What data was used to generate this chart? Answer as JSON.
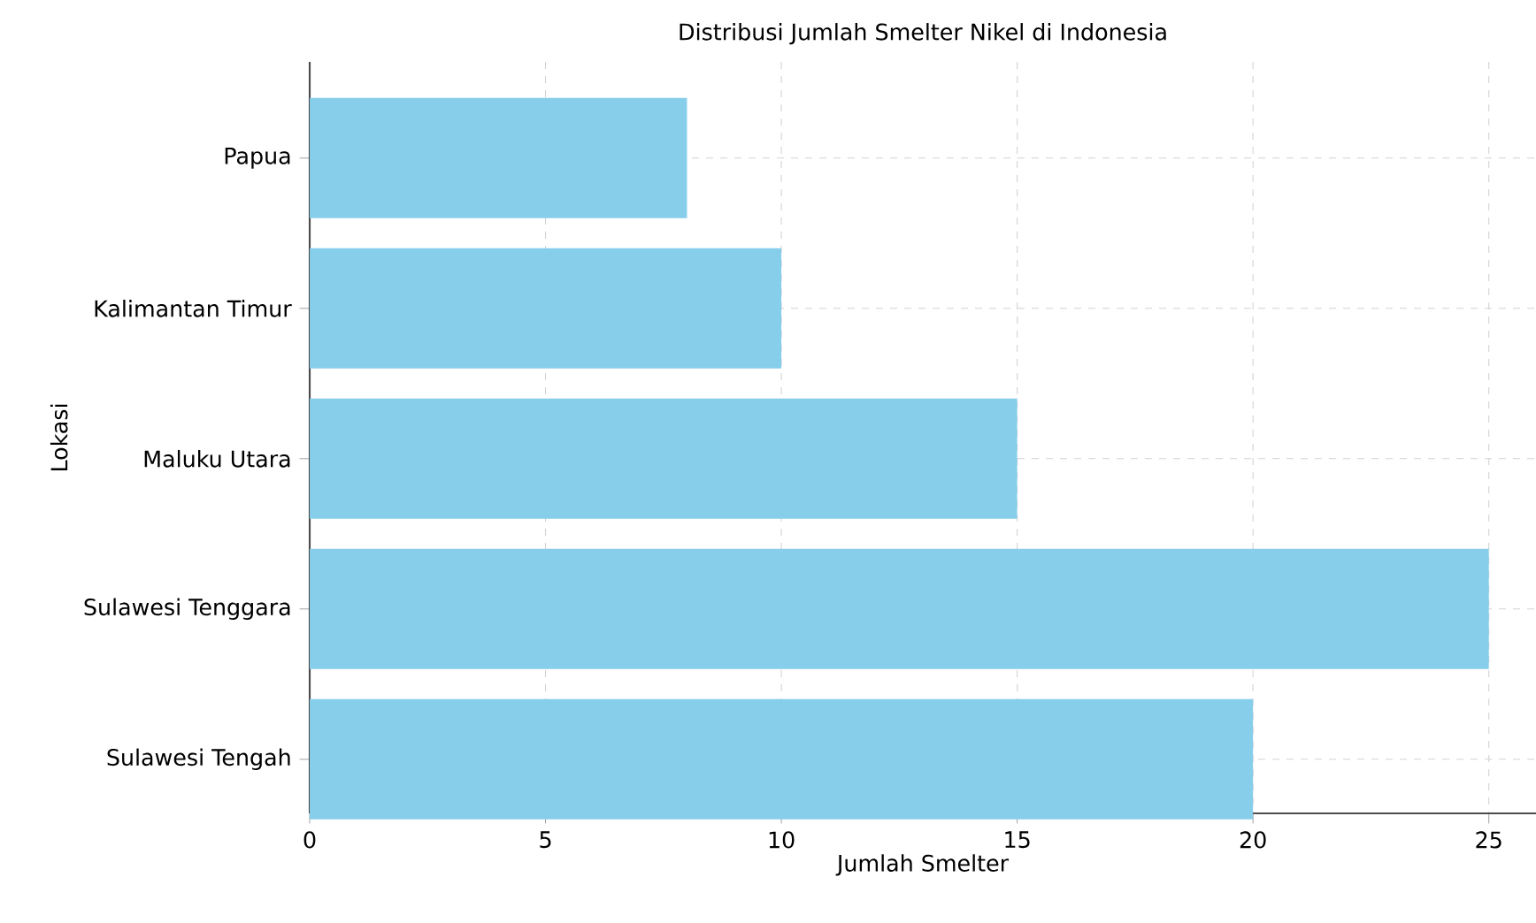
{
  "chart_data": {
    "type": "bar",
    "orientation": "horizontal",
    "title": "Distribusi Jumlah Smelter Nikel di Indonesia",
    "xlabel": "Jumlah Smelter",
    "ylabel": "Lokasi",
    "categories": [
      "Papua",
      "Kalimantan Timur",
      "Maluku Utara",
      "Sulawesi Tenggara",
      "Sulawesi Tengah"
    ],
    "values": [
      8,
      10,
      15,
      25,
      20
    ],
    "color": "#87ceeb",
    "xlim": [
      0,
      26
    ],
    "xticks": [
      0,
      5,
      10,
      15,
      20,
      25
    ],
    "grid": true
  }
}
